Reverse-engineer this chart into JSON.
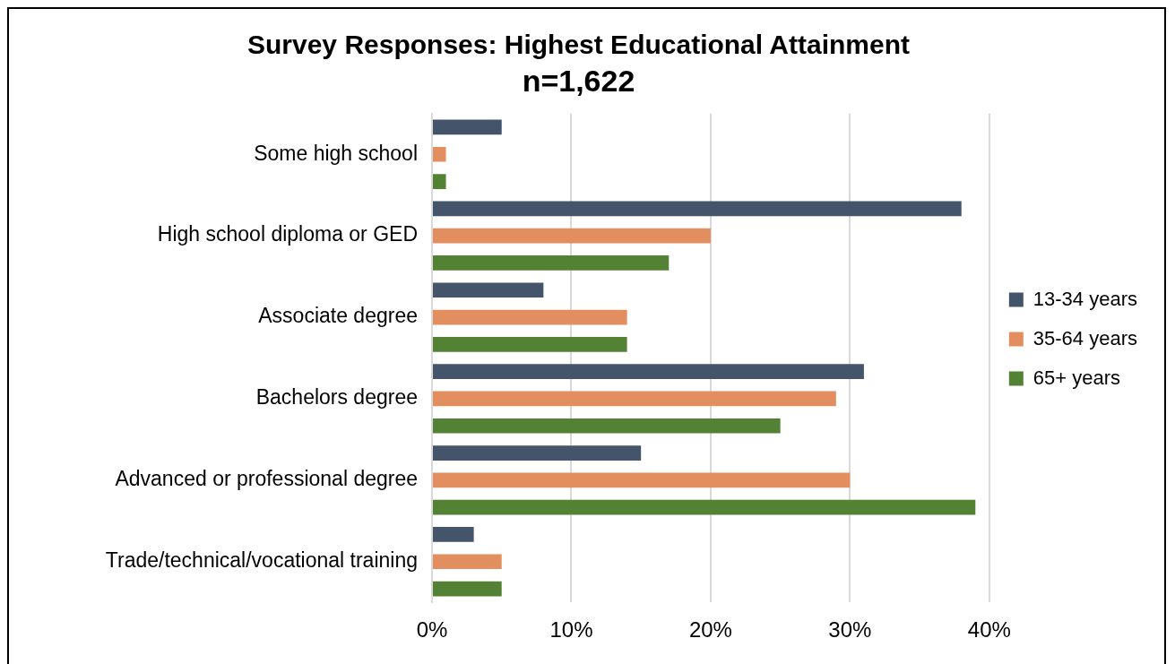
{
  "chart_data": {
    "type": "bar",
    "orientation": "horizontal",
    "title": "Survey Responses: Highest Educational Attainment",
    "subtitle": "n=1,622",
    "categories": [
      "Some high school",
      "High school diploma or GED",
      "Associate degree",
      "Bachelors degree",
      "Advanced or professional degree",
      "Trade/technical/vocational training"
    ],
    "series": [
      {
        "name": "13-34 years",
        "color": "#44546a",
        "values": [
          5,
          38,
          8,
          31,
          15,
          3
        ]
      },
      {
        "name": "35-64 years",
        "color": "#e38e5e",
        "values": [
          1,
          20,
          14,
          29,
          30,
          5
        ]
      },
      {
        "name": "65+ years",
        "color": "#548235",
        "values": [
          1,
          17,
          14,
          25,
          39,
          5
        ]
      }
    ],
    "xlim": [
      0,
      40
    ],
    "xticks": [
      {
        "value": 0,
        "label": "0%"
      },
      {
        "value": 10,
        "label": "10%"
      },
      {
        "value": 20,
        "label": "20%"
      },
      {
        "value": 30,
        "label": "30%"
      },
      {
        "value": 40,
        "label": "40%"
      }
    ],
    "grid": "x",
    "legend": "right"
  }
}
